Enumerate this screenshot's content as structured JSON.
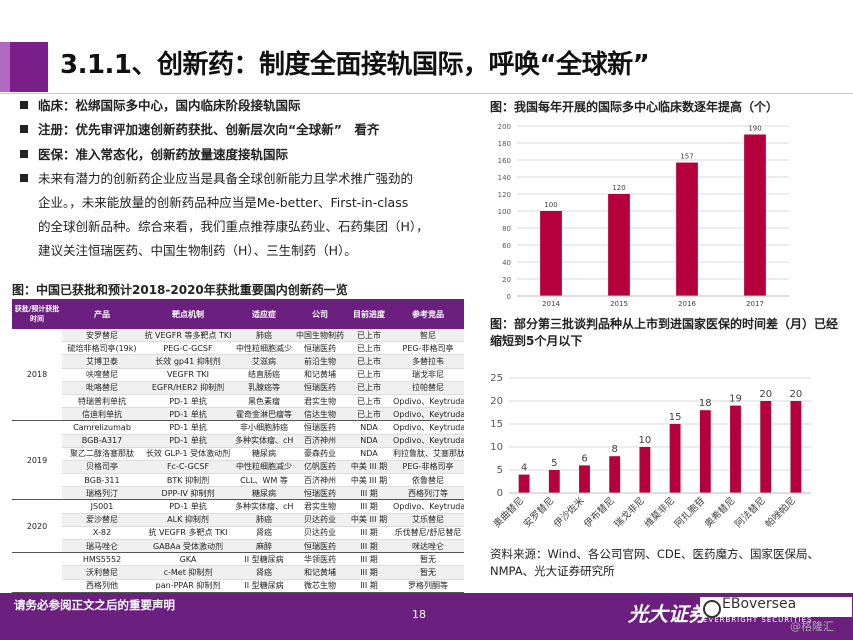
{
  "header": {
    "title": "3.1.1、创新药：制度全面接轨国际，呼唤“全球新”"
  },
  "bullets": [
    {
      "text": "临床：松绑国际多中心，国内临床阶段接轨国际",
      "bold": true
    },
    {
      "text": "注册：优先审评加速创新药获批、创新层次向“全球新”　看齐",
      "bold": true
    },
    {
      "text": "医保：准入常态化，创新药放量速度接轨国际",
      "bold": true
    },
    {
      "text": "未来有潜力的创新药企业应当是具备全球创新能力且学术推广强劲的",
      "bold": false
    }
  ],
  "bullet_cont": [
    "企业。，未来能放量的创新药品种应当是Me-better、First-in-class",
    "的全球创新品种。综合来看，我们重点推荐康弘药业、石药集团（H），",
    "建议关注恒瑞医药、中国生物制药（H）、三生制药（H）。"
  ],
  "table": {
    "title": "图：中国已获批和预计2018-2020年获批重要国内创新药一览",
    "headers": [
      "获批/预计获批时间",
      "产品",
      "靶点机制",
      "适应症",
      "公司",
      "目前进度",
      "参考竞品"
    ],
    "groups": [
      {
        "year": "2018",
        "rows": [
          [
            "安罗替尼",
            "抗 VEGFR 等多靶点 TKI",
            "肺癌",
            "中国生物制药",
            "已上市",
            "智尼"
          ],
          [
            "硫培非格司亭(19k)",
            "PEG-C-GCSF",
            "中性粒细胞减少",
            "恒瑞医药",
            "已上市",
            "PEG-非格司亭"
          ],
          [
            "艾博卫泰",
            "长效 gp41 抑制剂",
            "艾滋病",
            "前沿生物",
            "已上市",
            "多替拉韦"
          ],
          [
            "呋喹替尼",
            "VEGFR TKI",
            "结直肠癌",
            "和记黄埔",
            "已上市",
            "瑞戈非尼"
          ],
          [
            "吡咯替尼",
            "EGFR/HER2 抑制剂",
            "乳腺癌等",
            "恒瑞医药",
            "已上市",
            "拉帕替尼"
          ],
          [
            "特瑞普利单抗",
            "PD-1 单抗",
            "黑色素瘤",
            "君实生物",
            "已上市",
            "Opdivo、Keytruda"
          ],
          [
            "信迪利单抗",
            "PD-1 单抗",
            "霍奇金淋巴瘤等",
            "信达生物",
            "已上市",
            "Opdivo、Keytruda"
          ]
        ]
      },
      {
        "year": "2019",
        "rows": [
          [
            "Camrelizumab",
            "PD-1 单抗",
            "非小细胞肺癌",
            "恒瑞医药",
            "NDA",
            "Opdivo、Keytruda"
          ],
          [
            "BGB-A317",
            "PD-1 单抗",
            "多种实体瘤、cHL",
            "百济神州",
            "NDA",
            "Opdivo、Keytruda"
          ],
          [
            "聚乙二醇洛塞那肽",
            "长效 GLP-1 受体激动剂",
            "糖尿病",
            "豪森药业",
            "NDA",
            "利拉鲁肽、艾塞那肽等"
          ],
          [
            "贝格司亭",
            "Fc-C-GCSF",
            "中性粒细胞减少",
            "亿帆医药",
            "中美 III 期",
            "PEG-非格司亭"
          ],
          [
            "BGB-311",
            "BTK 抑制剂",
            "CLL、WM 等",
            "百济神州",
            "中美 III 期",
            "依鲁替尼"
          ],
          [
            "瑞格列汀",
            "DPP-IV 抑制剂",
            "糖尿病",
            "恒瑞医药",
            "III 期",
            "西格列汀等"
          ]
        ]
      },
      {
        "year": "2020",
        "rows": [
          [
            "JS001",
            "PD-1 单抗",
            "多种实体瘤、cHL",
            "君实生物",
            "III 期",
            "Opdivo、Keytruda"
          ],
          [
            "爱沙替尼",
            "ALK 抑制剂",
            "肺癌",
            "贝达药业",
            "中美 III 期",
            "艾乐替尼"
          ],
          [
            "X-82",
            "抗 VEGFR 多靶点 TKI",
            "肾癌",
            "贝达药业",
            "III 期",
            "乐伐替尼/舒尼替尼"
          ],
          [
            "瑞马唑仑",
            "GABAa 受体激动剂",
            "麻醉",
            "恒瑞医药",
            "III 期",
            "咪达唑仑"
          ]
        ]
      },
      {
        "year": "",
        "rows": [
          [
            "HMS5552",
            "GKA",
            "II 型糖尿病",
            "华领医药",
            "III 期",
            "暂无"
          ],
          [
            "沃利替尼",
            "c-Met 抑制剂",
            "肾癌",
            "和记黄埔",
            "III 期",
            "暂无"
          ],
          [
            "西格列他",
            "pan-PPAR 抑制剂",
            "II 型糖尿病",
            "微芯生物",
            "III 期",
            "罗格列酮等"
          ]
        ]
      }
    ]
  },
  "chart1": {
    "title": "图：我国每年开展的国际多中心临床数逐年提高（个）",
    "chart_data": {
      "type": "bar",
      "categories": [
        "2014",
        "2015",
        "2016",
        "2017"
      ],
      "values": [
        100,
        120,
        157,
        190
      ],
      "ylim": [
        0,
        200
      ],
      "yticks": [
        0,
        20,
        40,
        60,
        80,
        100,
        120,
        140,
        160,
        180,
        200
      ],
      "color": "#b5003d",
      "grid": true
    }
  },
  "chart2": {
    "title": "图：部分第三批谈判品种从上市到进国家医保的时间差（月）已经缩短到5个月以下",
    "chart_data": {
      "type": "bar",
      "categories": [
        "奥曲替尼",
        "安罗替尼",
        "伊沙佐米",
        "伊布替尼",
        "瑞戈非尼",
        "维莫非尼",
        "阿扎胞苷",
        "奥希替尼",
        "阿法替尼",
        "帕唑帕尼"
      ],
      "values": [
        4,
        5,
        6,
        8,
        10,
        15,
        18,
        19,
        20,
        20
      ],
      "ylim": [
        0,
        25
      ],
      "yticks": [
        0,
        5,
        10,
        15,
        20,
        25
      ],
      "color": "#b5003d",
      "grid": true
    }
  },
  "source": "资料来源：Wind、各公司官网、CDE、医药魔方、国家医保局、NMPA、光大证券研究所",
  "footer": {
    "disclaimer": "请务必参阅正文之后的重要声明",
    "page": "18",
    "brand_cn": "光大证券",
    "brand_en": "EVERBRIGHT SECURITIES",
    "watermark1": "EBoversea",
    "watermark2": "@格隆汇"
  }
}
